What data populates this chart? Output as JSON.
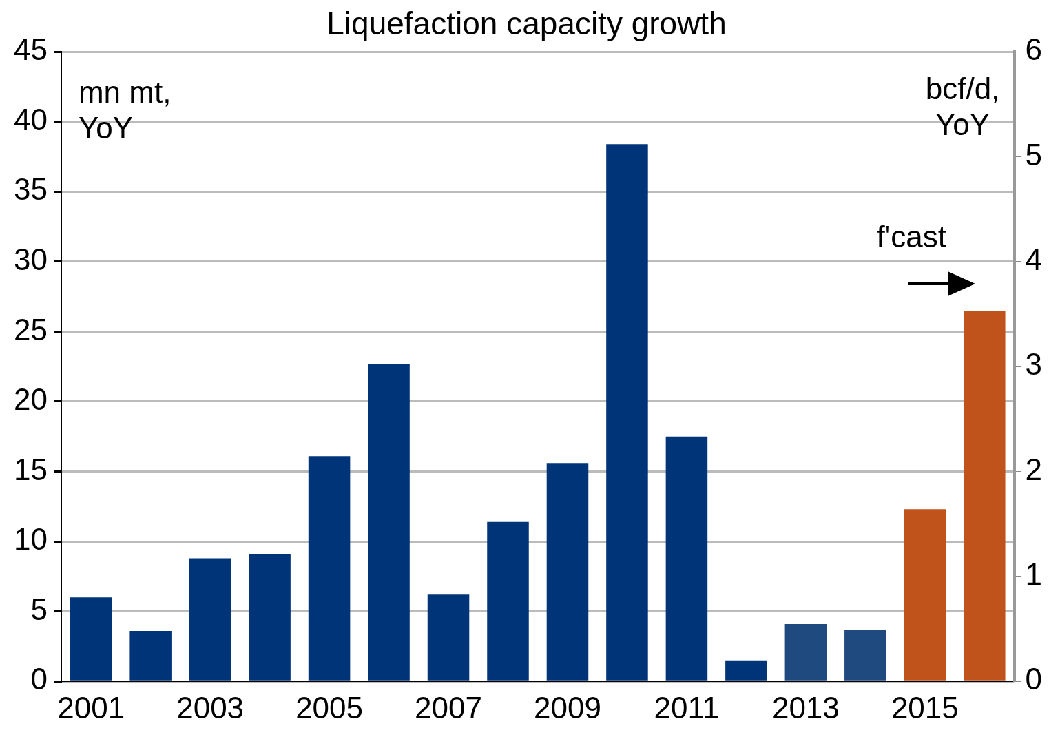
{
  "chart_data": {
    "type": "bar",
    "title": "Liquefaction capacity growth",
    "categories": [
      "2001",
      null,
      "2003",
      null,
      "2005",
      null,
      "2007",
      null,
      "2009",
      null,
      "2011",
      null,
      "2013",
      null,
      "2015",
      null
    ],
    "values": [
      6.0,
      3.6,
      8.8,
      9.1,
      16.1,
      22.7,
      6.2,
      11.4,
      15.6,
      38.4,
      17.5,
      1.5,
      4.1,
      3.7,
      12.3,
      26.5
    ],
    "colors": [
      "#003478",
      "#003478",
      "#003478",
      "#003478",
      "#003478",
      "#003478",
      "#003478",
      "#003478",
      "#003478",
      "#003478",
      "#003478",
      "#003478",
      "#1f4a80",
      "#1f4a80",
      "#c0531c",
      "#c0531c"
    ],
    "ylabel": "mn mt, YoY",
    "y2label": "bcf/d, YoY",
    "ylim": [
      0,
      45
    ],
    "yticks": [
      0,
      5,
      10,
      15,
      20,
      25,
      30,
      35,
      40,
      45
    ],
    "y2lim": [
      0,
      6
    ],
    "y2ticks": [
      0,
      1,
      2,
      3,
      4,
      5,
      6
    ],
    "annotations": [
      "f'cast"
    ],
    "grid": "y",
    "legend": false
  }
}
